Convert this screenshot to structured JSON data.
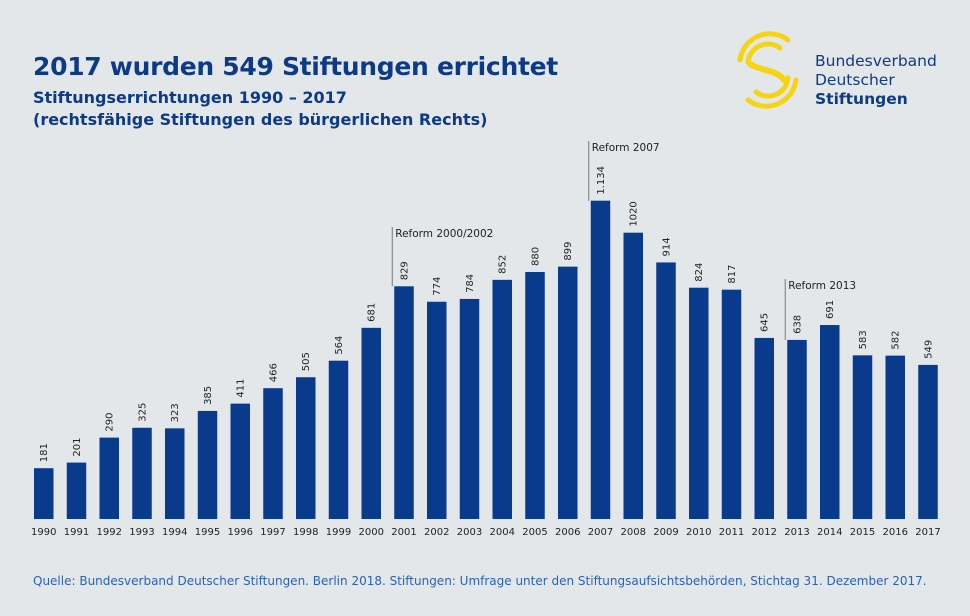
{
  "header": {
    "title": "2017 wurden 549 Stiftungen errichtet",
    "subtitle1": "Stiftungserrichtungen 1990 – 2017",
    "subtitle2": "(rechtsfähige Stiftungen des bürgerlichen Rechts)"
  },
  "logo": {
    "line1": "Bundesverband",
    "line2": "Deutscher",
    "line3": "Stiftungen",
    "icon": "yellow-swirl-s-logo"
  },
  "source": "Quelle: Bundesverband Deutscher Stiftungen. Berlin 2018. Stiftungen: Umfrage unter den Stiftungsaufsichtsbehörden, Stichtag 31. Dezember 2017.",
  "colors": {
    "bar": "#0a3a8c",
    "background": "#e3e7ea",
    "logo": "#f5d414"
  },
  "chart_data": {
    "type": "bar",
    "title": "2017 wurden 549 Stiftungen errichtet",
    "categories": [
      "1990",
      "1991",
      "1992",
      "1993",
      "1994",
      "1995",
      "1996",
      "1997",
      "1998",
      "1999",
      "2000",
      "2001",
      "2002",
      "2003",
      "2004",
      "2005",
      "2006",
      "2007",
      "2008",
      "2009",
      "2010",
      "2011",
      "2012",
      "2013",
      "2014",
      "2015",
      "2016",
      "2017"
    ],
    "values": [
      181,
      201,
      290,
      325,
      323,
      385,
      411,
      466,
      505,
      564,
      681,
      829,
      774,
      784,
      852,
      880,
      899,
      1134,
      1020,
      914,
      824,
      817,
      645,
      638,
      691,
      583,
      582,
      549
    ],
    "labels": [
      "181",
      "201",
      "290",
      "325",
      "323",
      "385",
      "411",
      "466",
      "505",
      "564",
      "681",
      "829",
      "774",
      "784",
      "852",
      "880",
      "899",
      "1.134",
      "1020",
      "914",
      "824",
      "817",
      "645",
      "638",
      "691",
      "583",
      "582",
      "549"
    ],
    "annotations": [
      {
        "category": "2001",
        "text": "Reform 2000/2002"
      },
      {
        "category": "2007",
        "text": "Reform 2007"
      },
      {
        "category": "2013",
        "text": "Reform 2013"
      }
    ],
    "xlabel": "",
    "ylabel": "",
    "ylim": [
      0,
      1134
    ],
    "grid": false,
    "legend": "none"
  }
}
